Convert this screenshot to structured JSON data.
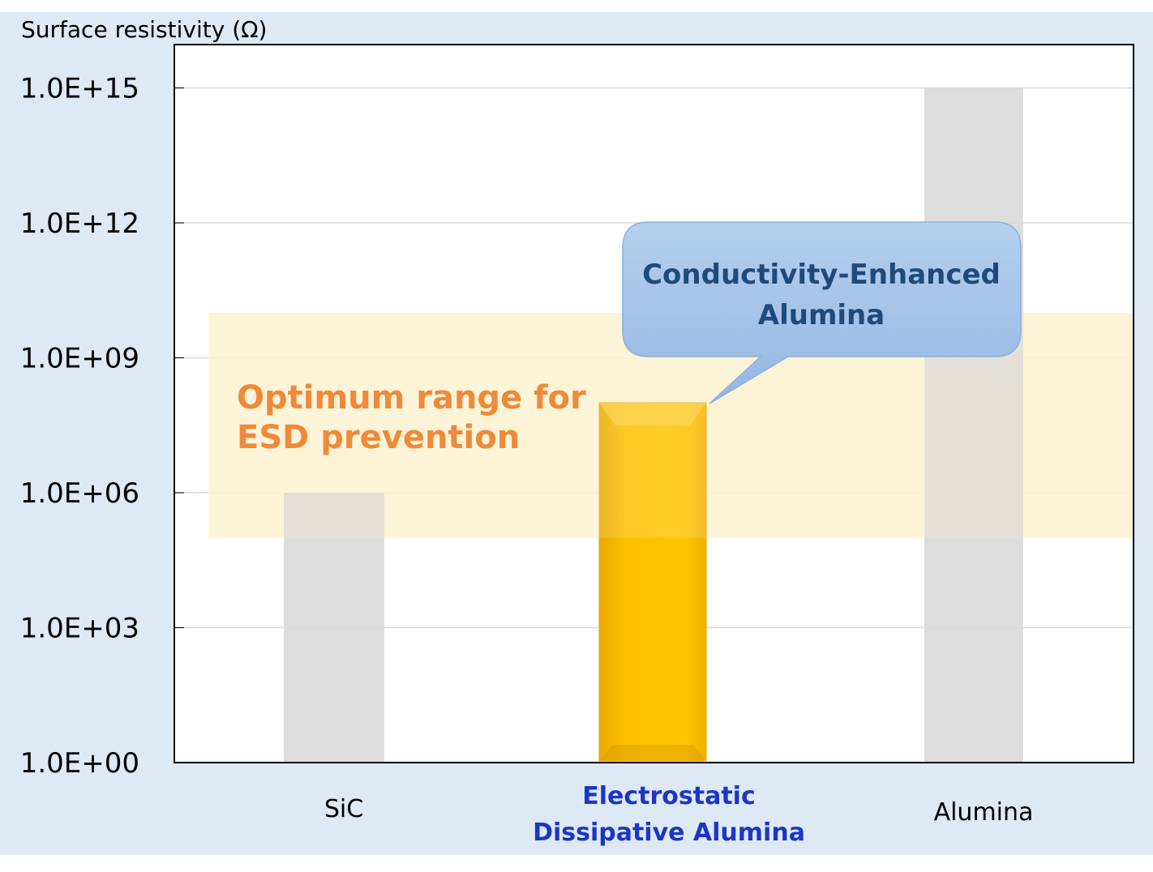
{
  "colors": {
    "background": "#dde9f5",
    "plot_area": "#ffffff",
    "gridline": "#d9d9d9",
    "gray_bar": "#d9d9d9",
    "gold_bar": "#ffc000",
    "gold_bar_edge": "#e0a800",
    "band_fill": "#fdf3d3",
    "band_text": "#ee8a3a",
    "callout_fill": "#a4c2e8",
    "callout_text": "#1f4a79",
    "highlight_label": "#1c35c8"
  },
  "chart_data": {
    "type": "bar",
    "title": "",
    "ylabel": "Surface resistivity (Ω)",
    "xlabel": "",
    "yscale": "log",
    "ylim": [
      1,
      1e+16
    ],
    "grid": true,
    "legend": "none",
    "yticks": [
      {
        "value": 1,
        "label": "1.0E+00"
      },
      {
        "value": 1000,
        "label": "1.0E+03"
      },
      {
        "value": 1000000,
        "label": "1.0E+06"
      },
      {
        "value": 1000000000,
        "label": "1.0E+09"
      },
      {
        "value": 1000000000000,
        "label": "1.0E+12"
      },
      {
        "value": 1000000000000000,
        "label": "1.0E+15"
      }
    ],
    "categories": [
      {
        "label": "SiC",
        "label_lines": [
          "SiC"
        ],
        "highlight": false
      },
      {
        "label": "Electrostatic Dissipative Alumina",
        "label_lines": [
          "Electrostatic",
          "Dissipative Alumina"
        ],
        "highlight": true
      },
      {
        "label": "Alumina",
        "label_lines": [
          "Alumina"
        ],
        "highlight": false
      }
    ],
    "values": [
      1000000,
      100000000.0,
      1000000000000000.0
    ],
    "band": {
      "from": 100000,
      "to": 10000000000.0,
      "label_lines": [
        "Optimum range for",
        "ESD prevention"
      ]
    },
    "callout": {
      "target_category": 1,
      "label_lines": [
        "Conductivity-Enhanced",
        "Alumina"
      ]
    }
  }
}
